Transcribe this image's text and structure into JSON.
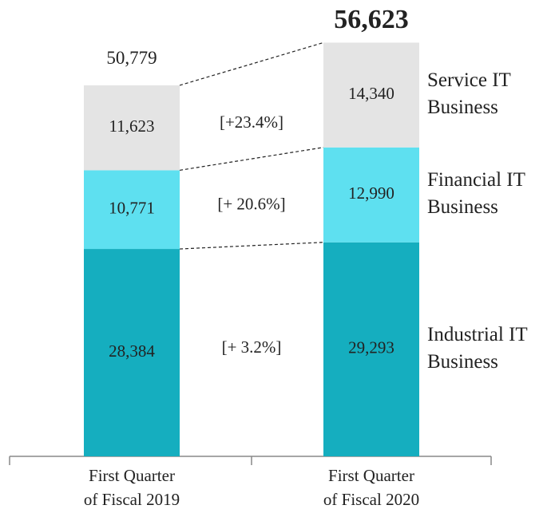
{
  "chart_data": {
    "type": "stacked_bar",
    "categories": [
      "First Quarter\nof Fiscal 2019",
      "First Quarter\nof Fiscal 2020"
    ],
    "series": [
      {
        "name": "Industrial IT\nBusiness",
        "color": "#15aebf",
        "values": [
          28384,
          29293
        ],
        "value_labels": [
          "28,384",
          "29,293"
        ],
        "change_label": "[+ 3.2%]"
      },
      {
        "name": "Financial IT\nBusiness",
        "color": "#5ee0f0",
        "values": [
          10771,
          12990
        ],
        "value_labels": [
          "10,771",
          "12,990"
        ],
        "change_label": "[+ 20.6%]"
      },
      {
        "name": "Service IT\nBusiness",
        "color": "#e4e4e4",
        "values": [
          11623,
          14340
        ],
        "value_labels": [
          "11,623",
          "14,340"
        ],
        "change_label": "[+23.4%]"
      }
    ],
    "totals": [
      50779,
      56623
    ],
    "total_labels": [
      "50,779",
      "56,623"
    ],
    "ylim": [
      0,
      60000
    ]
  }
}
